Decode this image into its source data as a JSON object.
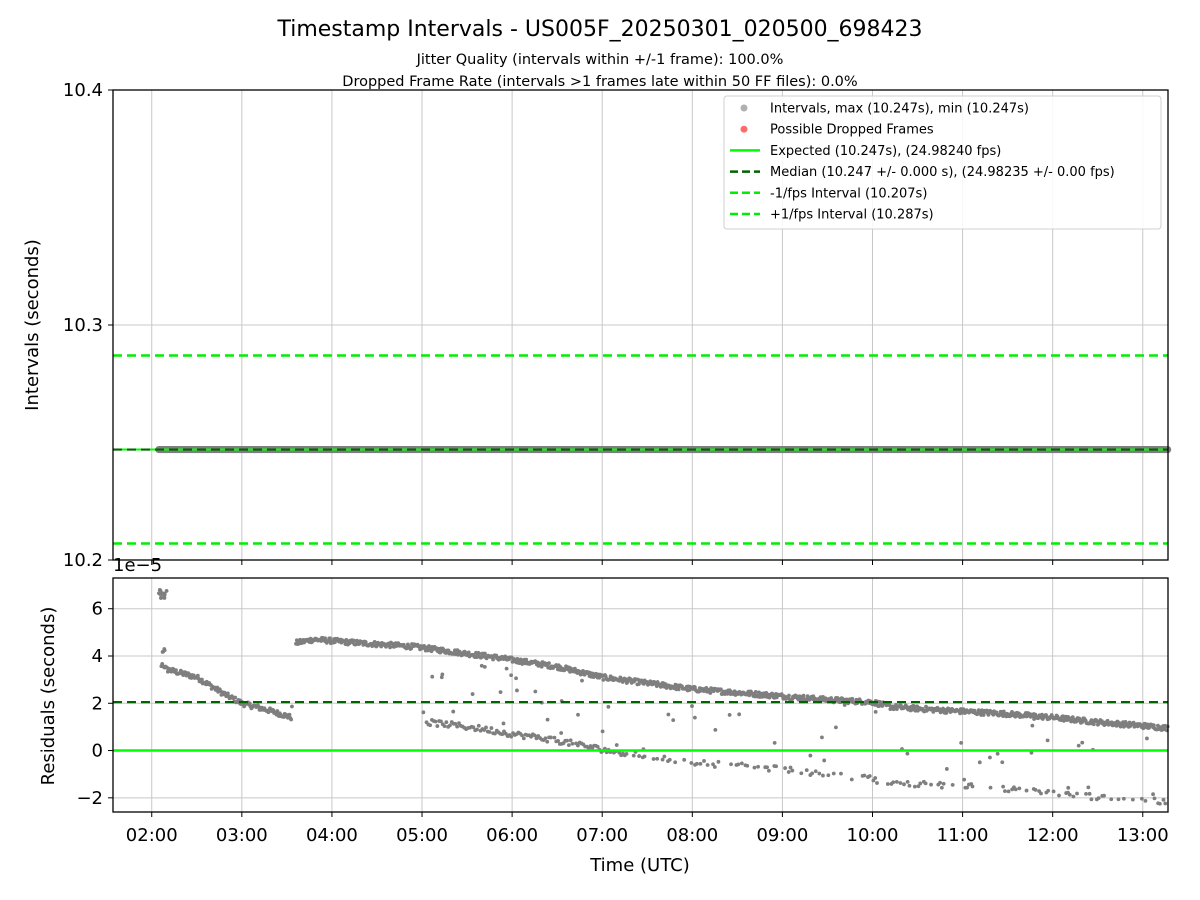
{
  "title": "Timestamp Intervals - US005F_20250301_020500_698423",
  "subtitle_1": "Jitter Quality (intervals within +/-1 frame): 100.0%",
  "subtitle_2": "Dropped Frame Rate (intervals >1 frames late within 50 FF files): 0.0%",
  "colors": {
    "points": "#7f7f7f",
    "points_legend": "#b0b0b0",
    "dropped": "#ff6b6b",
    "expected": "#00ff00",
    "median": "#006400",
    "fps_band": "#00ee00",
    "grid": "#c8c8c8"
  },
  "chart_data": [
    {
      "type": "scatter",
      "panel": "intervals",
      "ylabel": "Intervals (seconds)",
      "xlabel": "",
      "ylim": [
        10.2,
        10.4
      ],
      "xlim_hours": [
        1.57,
        13.28
      ],
      "yticks": [
        "10.2",
        "10.3",
        "10.4"
      ],
      "grid": true,
      "legend_position": "top-right",
      "legend": [
        {
          "label": "Intervals, max (10.247s), min (10.247s)",
          "kind": "point",
          "color": "#b0b0b0"
        },
        {
          "label": "Possible Dropped Frames",
          "kind": "point",
          "color": "#ff6b6b"
        },
        {
          "label": "Expected (10.247s), (24.98240 fps)",
          "kind": "solid",
          "color": "#00ff00"
        },
        {
          "label": "Median (10.247 +/- 0.000 s), (24.98235 +/- 0.00 fps)",
          "kind": "dashed",
          "color": "#006400"
        },
        {
          "label": "-1/fps Interval (10.207s)",
          "kind": "dashed",
          "color": "#00ee00"
        },
        {
          "label": "+1/fps Interval (10.287s)",
          "kind": "dashed",
          "color": "#00ee00"
        }
      ],
      "lines": {
        "expected": 10.247,
        "median": 10.247,
        "minus_fps": 10.207,
        "plus_fps": 10.287
      },
      "series": [
        {
          "name": "Intervals",
          "x_start_hours": 2.08,
          "x_end_hours": 13.28,
          "value": 10.247
        }
      ]
    },
    {
      "type": "scatter",
      "panel": "residuals",
      "ylabel": "Residuals (seconds)",
      "xlabel": "Time (UTC)",
      "offset_label": "1e−5",
      "ylim": [
        -2.6,
        7.3
      ],
      "xlim_hours": [
        1.57,
        13.28
      ],
      "yticks": [
        "−2",
        "0",
        "2",
        "4",
        "6"
      ],
      "ytick_values": [
        -2,
        0,
        2,
        4,
        6
      ],
      "xticks": [
        "02:00",
        "03:00",
        "04:00",
        "05:00",
        "06:00",
        "07:00",
        "08:00",
        "09:00",
        "10:00",
        "11:00",
        "12:00",
        "13:00"
      ],
      "xtick_values": [
        2,
        3,
        4,
        5,
        6,
        7,
        8,
        9,
        10,
        11,
        12,
        13
      ],
      "grid": true,
      "lines": {
        "expected": 0.0,
        "median": 2.05
      },
      "main_trend": [
        [
          2.08,
          6.7
        ],
        [
          2.1,
          3.5
        ],
        [
          2.5,
          3.1
        ],
        [
          2.8,
          2.4
        ],
        [
          3.0,
          2.0
        ],
        [
          3.3,
          1.7
        ],
        [
          3.55,
          1.4
        ],
        [
          3.6,
          4.55
        ],
        [
          3.8,
          4.7
        ],
        [
          4.3,
          4.55
        ],
        [
          4.9,
          4.4
        ],
        [
          5.3,
          4.2
        ],
        [
          5.8,
          3.95
        ],
        [
          6.5,
          3.55
        ],
        [
          7.0,
          3.1
        ],
        [
          7.5,
          2.85
        ],
        [
          8.0,
          2.6
        ],
        [
          8.5,
          2.45
        ],
        [
          9.0,
          2.3
        ],
        [
          9.5,
          2.15
        ],
        [
          10.0,
          2.05
        ],
        [
          10.2,
          1.85
        ],
        [
          10.8,
          1.7
        ],
        [
          11.5,
          1.55
        ],
        [
          12.0,
          1.4
        ],
        [
          12.5,
          1.2
        ],
        [
          13.0,
          1.05
        ],
        [
          13.28,
          0.95
        ]
      ],
      "secondary_trend": [
        [
          5.05,
          1.2
        ],
        [
          5.3,
          1.1
        ],
        [
          5.7,
          0.9
        ],
        [
          6.0,
          0.7
        ],
        [
          6.3,
          0.55
        ],
        [
          6.6,
          0.35
        ],
        [
          7.0,
          0.05
        ],
        [
          7.5,
          -0.25
        ],
        [
          8.0,
          -0.5
        ],
        [
          8.5,
          -0.65
        ],
        [
          9.0,
          -0.8
        ],
        [
          9.5,
          -1.0
        ],
        [
          10.0,
          -1.2
        ],
        [
          10.1,
          -1.35
        ],
        [
          11.0,
          -1.5
        ],
        [
          11.5,
          -1.65
        ],
        [
          12.0,
          -1.8
        ],
        [
          12.6,
          -2.0
        ],
        [
          13.0,
          -2.1
        ],
        [
          13.28,
          -2.2
        ]
      ]
    }
  ]
}
